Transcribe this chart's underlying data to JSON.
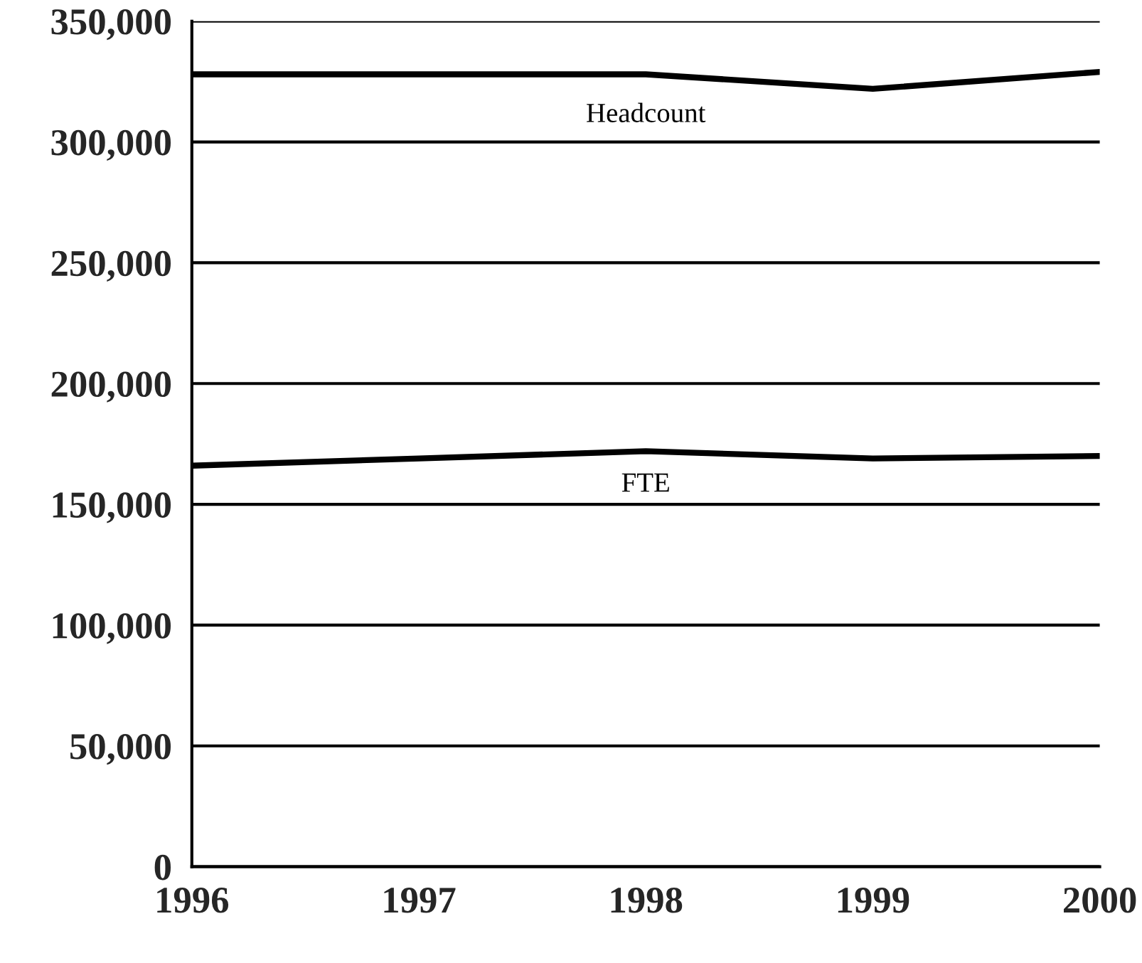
{
  "chart_data": {
    "type": "line",
    "x": [
      1996,
      1997,
      1998,
      1999,
      2000
    ],
    "series": [
      {
        "name": "Headcount",
        "color": "#000000",
        "values": [
          328000,
          328000,
          328000,
          322000,
          329000
        ]
      },
      {
        "name": "FTE",
        "color": "#000000",
        "values": [
          166000,
          169000,
          172000,
          169000,
          170000
        ]
      }
    ],
    "xlim": [
      1996,
      2000
    ],
    "xticks": [
      1996,
      1997,
      1998,
      1999,
      2000
    ],
    "ylim": [
      0,
      350000
    ],
    "yticks": [
      {
        "value": 0,
        "label": "0"
      },
      {
        "value": 50000,
        "label": "50,000"
      },
      {
        "value": 100000,
        "label": "100,000"
      },
      {
        "value": 150000,
        "label": "150,000"
      },
      {
        "value": 200000,
        "label": "200,000"
      },
      {
        "value": 250000,
        "label": "250,000"
      },
      {
        "value": 300000,
        "label": "300,000"
      },
      {
        "value": 350000,
        "label": "350,000"
      }
    ],
    "grid": "y",
    "legend": false,
    "line_style": "solid",
    "marker": "none"
  }
}
